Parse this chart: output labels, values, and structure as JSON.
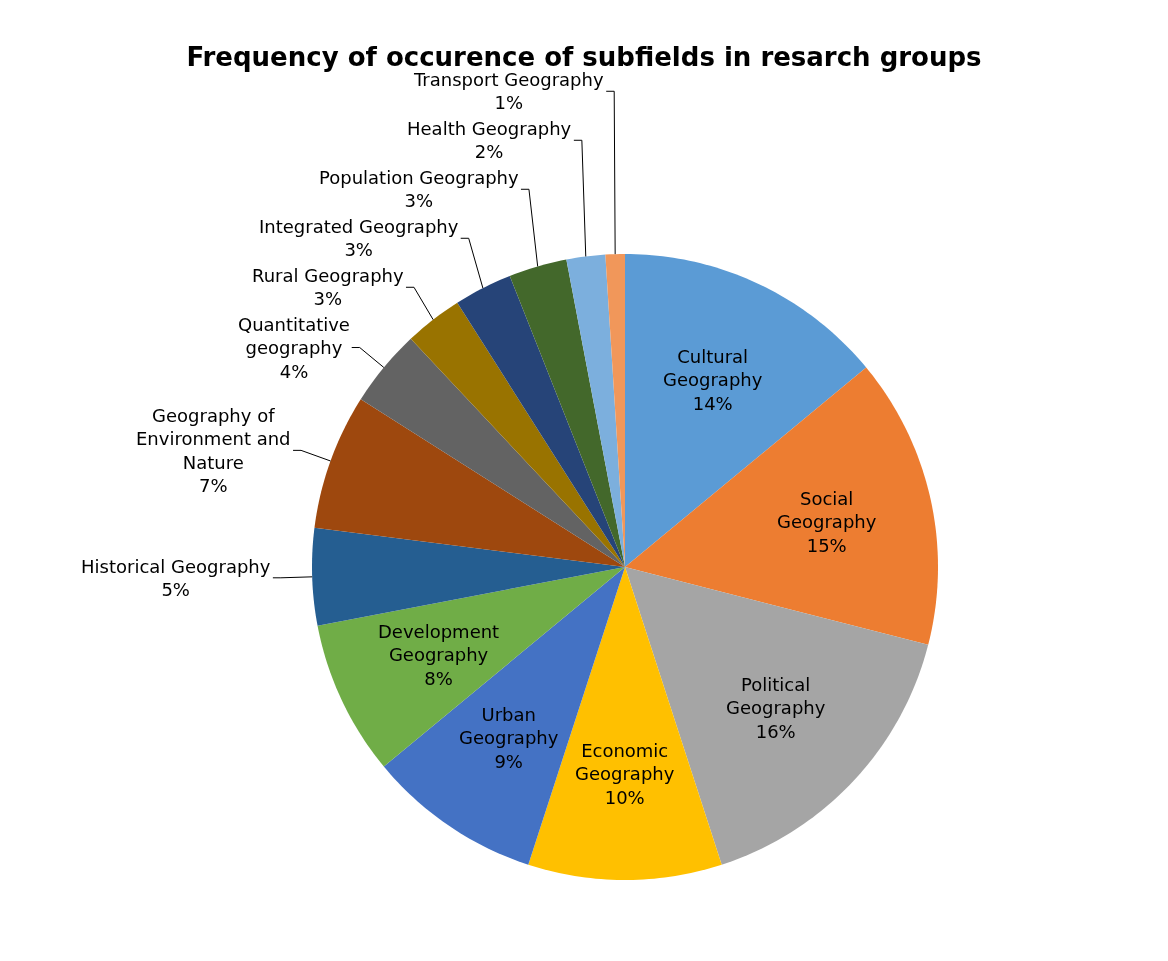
{
  "chart_data": {
    "type": "pie",
    "title": "Frequency of occurence of subfields in resarch groups",
    "categories": [
      "Cultural Geography",
      "Social Geography",
      "Political Geography",
      "Economic Geography",
      "Urban Geography",
      "Development Geography",
      "Historical Geography",
      "Geography of Environment and Nature",
      "Quantitative geography",
      "Rural Geography",
      "Integrated Geography",
      "Population Geography",
      "Health Geography",
      "Transport Geography"
    ],
    "values": [
      14,
      15,
      16,
      10,
      9,
      8,
      5,
      7,
      4,
      3,
      3,
      3,
      2,
      1
    ],
    "value_labels": [
      "14%",
      "15%",
      "16%",
      "10%",
      "9%",
      "8%",
      "5%",
      "7%",
      "4%",
      "3%",
      "3%",
      "3%",
      "2%",
      "1%"
    ],
    "colors": [
      "#5b9bd5",
      "#ed7d31",
      "#a5a5a5",
      "#ffc000",
      "#4472c4",
      "#70ad47",
      "#255e91",
      "#9e480e",
      "#636363",
      "#997300",
      "#264478",
      "#43682b",
      "#7cafdd",
      "#f1975a"
    ],
    "legend": false
  }
}
